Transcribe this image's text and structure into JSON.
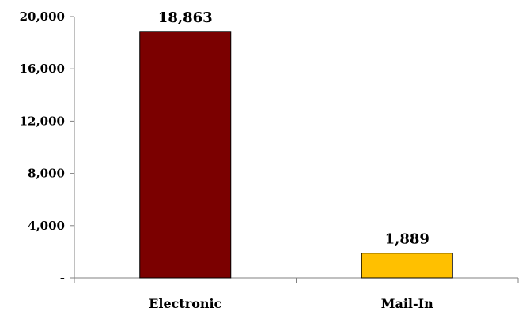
{
  "chart_data": {
    "type": "bar",
    "title": "",
    "xlabel": "",
    "ylabel": "",
    "categories": [
      "Electronic",
      "Mail-In"
    ],
    "values": [
      18863,
      1889
    ],
    "value_labels": [
      "18,863",
      "1,889"
    ],
    "colors": [
      "#7b0000",
      "#ffc000"
    ],
    "ylim": [
      0,
      20000
    ],
    "yticks": [
      0,
      4000,
      8000,
      12000,
      16000,
      20000
    ],
    "ytick_labels": [
      "-",
      "4,000",
      "8,000",
      "12,000",
      "16,000",
      "20,000"
    ],
    "grid": false,
    "legend": "none"
  }
}
